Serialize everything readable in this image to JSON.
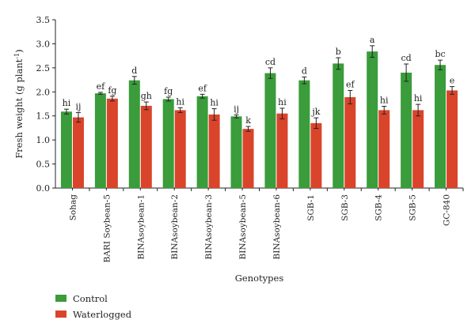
{
  "chart_data": {
    "type": "bar",
    "ylabel_main": "Fresh weight (g plant",
    "ylabel_sup": "-1",
    "ylabel_close": ")",
    "xlabel": "Genotypes",
    "ylim": [
      0,
      3.5
    ],
    "yticks": [
      "0.0",
      "0.5",
      "1.0",
      "1.5",
      "2.0",
      "2.5",
      "3.0",
      "3.5"
    ],
    "categories": [
      "Sohag",
      "BARI Soybean-5",
      "BINAsoybean-1",
      "BINAsoybean-2",
      "BINAsoybean-3",
      "BINAsoybean-5",
      "BINAsoybean-6",
      "SGB-1",
      "SGB-3",
      "SGB-4",
      "SGB-5",
      "GC-840"
    ],
    "series": [
      {
        "name": "Control",
        "color": "#3a9c3a",
        "values": [
          1.59,
          1.97,
          2.24,
          1.85,
          1.91,
          1.49,
          2.39,
          2.24,
          2.59,
          2.84,
          2.4,
          2.56
        ],
        "errors": [
          0.05,
          0.02,
          0.08,
          0.04,
          0.04,
          0.03,
          0.11,
          0.07,
          0.12,
          0.12,
          0.18,
          0.1
        ],
        "letters": [
          "hi",
          "ef",
          "d",
          "fg",
          "ef",
          "ij",
          "cd",
          "d",
          "b",
          "a",
          "cd",
          "bc"
        ]
      },
      {
        "name": "Waterlogged",
        "color": "#d9442b",
        "values": [
          1.47,
          1.86,
          1.71,
          1.62,
          1.53,
          1.23,
          1.55,
          1.35,
          1.89,
          1.62,
          1.62,
          2.03
        ],
        "errors": [
          0.1,
          0.05,
          0.08,
          0.05,
          0.12,
          0.05,
          0.11,
          0.11,
          0.14,
          0.08,
          0.12,
          0.08
        ],
        "letters": [
          "ij",
          "fg",
          "gh",
          "hi",
          "hi",
          "k",
          "hi",
          "jk",
          "ef",
          "hi",
          "hi",
          "e"
        ]
      }
    ],
    "legend_position": "bottom-left"
  }
}
